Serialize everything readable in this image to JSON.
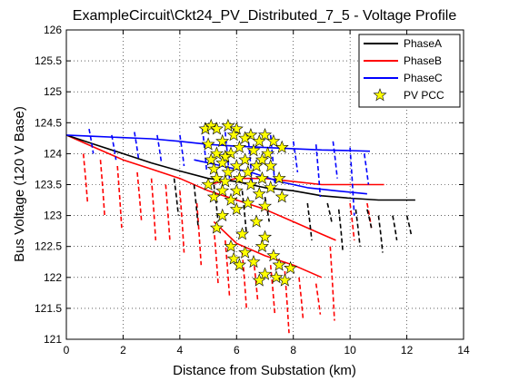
{
  "chart_data": {
    "type": "line",
    "title": "ExampleCircuit\\Ckt24_PV_Distributed_7_5 - Voltage Profile",
    "xlabel": "Distance from Substation (km)",
    "ylabel": "Bus Voltage (120 V Base)",
    "xlim": [
      0,
      14
    ],
    "ylim": [
      121,
      126
    ],
    "xticks": [
      0,
      2,
      4,
      6,
      8,
      10,
      12,
      14
    ],
    "yticks": [
      121,
      121.5,
      122,
      122.5,
      123,
      123.5,
      124,
      124.5,
      125,
      125.5,
      126
    ],
    "grid": true,
    "legend_position": "top-right",
    "colors": {
      "PhaseA": "#000000",
      "PhaseB": "#ff0000",
      "PhaseC": "#0000ff",
      "PVFill": "#ffff00",
      "PVEdge": "#000000"
    },
    "series": [
      {
        "name": "PhaseA",
        "color": "#000000",
        "trunk": [
          [
            0,
            124.3
          ],
          [
            1,
            124.15
          ],
          [
            2,
            124.0
          ],
          [
            3,
            123.85
          ],
          [
            4,
            123.72
          ],
          [
            5,
            123.6
          ],
          [
            6,
            123.55
          ],
          [
            7,
            123.45
          ],
          [
            8,
            123.4
          ],
          [
            9,
            123.32
          ],
          [
            10,
            123.28
          ],
          [
            11,
            123.25
          ],
          [
            12.3,
            123.25
          ]
        ],
        "laterals": [
          [
            3.8,
            123.6,
            123.0
          ],
          [
            4.5,
            123.5,
            122.8
          ],
          [
            5.2,
            123.5,
            122.9
          ],
          [
            6.2,
            123.4,
            122.7
          ],
          [
            7.0,
            123.3,
            122.9
          ],
          [
            8.5,
            123.2,
            122.6
          ],
          [
            9.2,
            123.2,
            122.9
          ],
          [
            9.6,
            123.1,
            122.4
          ],
          [
            10.2,
            123.1,
            122.5
          ],
          [
            10.6,
            123.1,
            122.8
          ],
          [
            11.0,
            123.0,
            122.4
          ],
          [
            11.5,
            123.0,
            122.6
          ],
          [
            12.0,
            123.0,
            122.7
          ]
        ]
      },
      {
        "name": "PhaseB",
        "color": "#ff0000",
        "trunk": [
          [
            0,
            124.3
          ],
          [
            1,
            124.1
          ],
          [
            2,
            123.9
          ],
          [
            3,
            123.75
          ],
          [
            4,
            123.6
          ],
          [
            5,
            123.4
          ],
          [
            6,
            123.25
          ],
          [
            7,
            123.1
          ],
          [
            8,
            122.9
          ],
          [
            9,
            122.7
          ],
          [
            9.5,
            122.6
          ]
        ],
        "branch2": [
          [
            5.0,
            123.5
          ],
          [
            6.0,
            123.6
          ],
          [
            7.0,
            123.6
          ],
          [
            8.0,
            123.55
          ],
          [
            9.0,
            123.5
          ],
          [
            10.0,
            123.5
          ],
          [
            11.2,
            123.5
          ]
        ],
        "branch3": [
          [
            5.2,
            122.9
          ],
          [
            6.0,
            122.55
          ],
          [
            7.0,
            122.35
          ],
          [
            8.0,
            122.2
          ],
          [
            9.0,
            122.0
          ]
        ],
        "laterals": [
          [
            0.6,
            124.0,
            123.2
          ],
          [
            1.2,
            123.9,
            123.0
          ],
          [
            1.8,
            123.8,
            122.8
          ],
          [
            2.5,
            123.7,
            122.9
          ],
          [
            3.0,
            123.6,
            122.6
          ],
          [
            3.5,
            123.5,
            122.6
          ],
          [
            4.0,
            123.4,
            122.4
          ],
          [
            4.6,
            123.2,
            122.2
          ],
          [
            5.2,
            122.8,
            121.9
          ],
          [
            5.6,
            122.6,
            121.7
          ],
          [
            6.2,
            122.4,
            121.5
          ],
          [
            6.6,
            122.3,
            121.6
          ],
          [
            7.2,
            122.2,
            121.4
          ],
          [
            7.7,
            122.1,
            121.1
          ],
          [
            8.2,
            122.0,
            121.3
          ],
          [
            8.8,
            121.9,
            121.4
          ],
          [
            9.3,
            122.5,
            121.3
          ],
          [
            10.0,
            123.2,
            122.6
          ],
          [
            10.6,
            123.2,
            122.8
          ]
        ]
      },
      {
        "name": "PhaseC",
        "color": "#0000ff",
        "trunk": [
          [
            0,
            124.3
          ],
          [
            1,
            124.28
          ],
          [
            2,
            124.26
          ],
          [
            3,
            124.24
          ],
          [
            4,
            124.2
          ],
          [
            5,
            124.15
          ],
          [
            6,
            124.12
          ],
          [
            7,
            124.1
          ],
          [
            8,
            124.08
          ],
          [
            9,
            124.06
          ],
          [
            10,
            124.05
          ],
          [
            10.7,
            124.04
          ]
        ],
        "branch2": [
          [
            4.5,
            123.9
          ],
          [
            5.5,
            123.8
          ],
          [
            6.5,
            123.7
          ],
          [
            7.5,
            123.55
          ],
          [
            8.5,
            123.45
          ],
          [
            9.5,
            123.4
          ],
          [
            10.6,
            123.35
          ]
        ],
        "laterals": [
          [
            0.8,
            124.4,
            124.0
          ],
          [
            1.6,
            124.3,
            123.9
          ],
          [
            2.4,
            124.35,
            123.9
          ],
          [
            3.2,
            124.3,
            123.85
          ],
          [
            4.0,
            124.3,
            123.8
          ],
          [
            4.8,
            124.4,
            123.7
          ],
          [
            5.6,
            124.35,
            123.6
          ],
          [
            6.4,
            124.3,
            123.5
          ],
          [
            7.2,
            124.3,
            123.5
          ],
          [
            8.0,
            124.2,
            123.7
          ],
          [
            8.8,
            124.15,
            123.3
          ],
          [
            9.4,
            124.2,
            123.6
          ],
          [
            10.0,
            124.1,
            123.0
          ],
          [
            10.5,
            124.0,
            123.5
          ]
        ]
      },
      {
        "name": "PV PCC",
        "marker": "star",
        "points": [
          [
            4.9,
            124.4
          ],
          [
            5.1,
            124.45
          ],
          [
            5.3,
            124.4
          ],
          [
            5.7,
            124.45
          ],
          [
            6.0,
            124.4
          ],
          [
            5.9,
            124.3
          ],
          [
            6.5,
            124.3
          ],
          [
            7.0,
            124.3
          ],
          [
            6.3,
            124.25
          ],
          [
            5.5,
            124.2
          ],
          [
            6.8,
            124.2
          ],
          [
            7.3,
            124.2
          ],
          [
            5.0,
            124.15
          ],
          [
            6.1,
            124.1
          ],
          [
            7.6,
            124.1
          ],
          [
            6.6,
            124.05
          ],
          [
            5.3,
            124.0
          ],
          [
            5.8,
            124.0
          ],
          [
            7.1,
            124.0
          ],
          [
            5.6,
            123.95
          ],
          [
            6.3,
            123.9
          ],
          [
            6.9,
            123.9
          ],
          [
            5.1,
            123.9
          ],
          [
            5.5,
            123.85
          ],
          [
            6.0,
            123.8
          ],
          [
            6.7,
            123.8
          ],
          [
            7.2,
            123.8
          ],
          [
            5.2,
            123.75
          ],
          [
            6.4,
            123.7
          ],
          [
            5.7,
            123.7
          ],
          [
            5.3,
            123.6
          ],
          [
            6.1,
            123.6
          ],
          [
            6.9,
            123.6
          ],
          [
            7.5,
            123.6
          ],
          [
            5.6,
            123.55
          ],
          [
            5.0,
            123.5
          ],
          [
            6.5,
            123.5
          ],
          [
            7.2,
            123.45
          ],
          [
            5.5,
            123.4
          ],
          [
            6.0,
            123.4
          ],
          [
            6.8,
            123.35
          ],
          [
            7.6,
            123.3
          ],
          [
            5.2,
            123.3
          ],
          [
            5.8,
            123.25
          ],
          [
            6.4,
            123.2
          ],
          [
            7.0,
            123.15
          ],
          [
            6.0,
            123.1
          ],
          [
            5.5,
            123.0
          ],
          [
            6.7,
            122.9
          ],
          [
            5.3,
            122.8
          ],
          [
            6.2,
            122.7
          ],
          [
            7.0,
            122.65
          ],
          [
            5.8,
            122.5
          ],
          [
            6.9,
            122.5
          ],
          [
            6.3,
            122.4
          ],
          [
            7.3,
            122.35
          ],
          [
            5.9,
            122.3
          ],
          [
            6.6,
            122.25
          ],
          [
            6.1,
            122.2
          ],
          [
            7.5,
            122.2
          ],
          [
            7.9,
            122.15
          ],
          [
            7.0,
            122.05
          ],
          [
            7.4,
            122.0
          ],
          [
            6.8,
            121.95
          ],
          [
            7.7,
            121.95
          ]
        ]
      }
    ]
  }
}
